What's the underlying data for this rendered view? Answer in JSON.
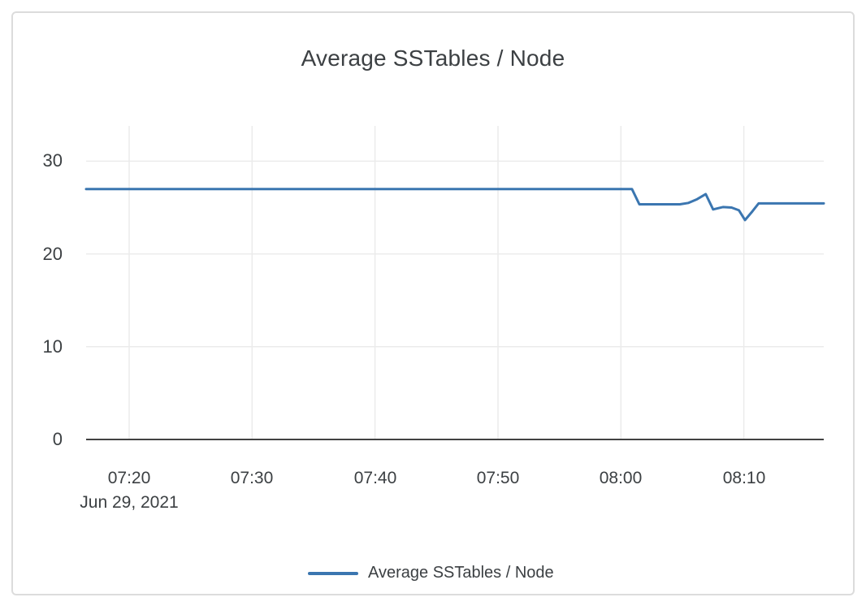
{
  "chart_data": {
    "type": "line",
    "title": "Average SSTables / Node",
    "x_axis": {
      "tick_labels": [
        "07:20",
        "07:30",
        "07:40",
        "07:50",
        "08:00",
        "08:10"
      ],
      "tick_minutes": [
        20,
        30,
        40,
        50,
        60,
        70
      ],
      "xlim_minutes": [
        16.5,
        76.5
      ],
      "date_label": "Jun 29, 2021"
    },
    "y_axis": {
      "tick_labels": [
        "0",
        "10",
        "20",
        "30"
      ],
      "tick_values": [
        0,
        10,
        20,
        30
      ],
      "ylim": [
        0,
        33.8
      ]
    },
    "grid": true,
    "legend": {
      "position": "bottom",
      "label": "Average SSTables / Node"
    },
    "series": [
      {
        "name": "Average SSTables / Node",
        "color": "#3b76b0",
        "points": [
          [
            16.5,
            27.0
          ],
          [
            60.9,
            27.0
          ],
          [
            61.5,
            25.35
          ],
          [
            64.8,
            25.35
          ],
          [
            65.5,
            25.5
          ],
          [
            66.2,
            25.9
          ],
          [
            66.9,
            26.45
          ],
          [
            67.5,
            24.8
          ],
          [
            68.3,
            25.05
          ],
          [
            69.0,
            25.0
          ],
          [
            69.6,
            24.7
          ],
          [
            70.1,
            23.65
          ],
          [
            70.7,
            24.6
          ],
          [
            71.2,
            25.45
          ],
          [
            76.5,
            25.45
          ]
        ]
      }
    ]
  },
  "colors": {
    "accent_line": "#3b76b0",
    "axis": "#424242",
    "grid": "#ebebeb",
    "text": "#3c4043",
    "card_border": "#dcdcdc",
    "background": "#ffffff"
  }
}
